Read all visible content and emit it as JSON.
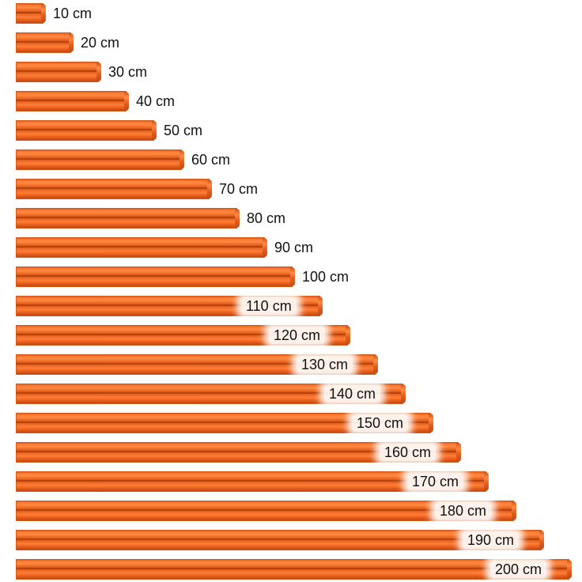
{
  "rods": [
    {
      "length_cm": 10,
      "label": "10 cm"
    },
    {
      "length_cm": 20,
      "label": "20 cm"
    },
    {
      "length_cm": 30,
      "label": "30 cm"
    },
    {
      "length_cm": 40,
      "label": "40 cm"
    },
    {
      "length_cm": 50,
      "label": "50 cm"
    },
    {
      "length_cm": 60,
      "label": "60 cm"
    },
    {
      "length_cm": 70,
      "label": "70 cm"
    },
    {
      "length_cm": 80,
      "label": "80 cm"
    },
    {
      "length_cm": 90,
      "label": "90 cm"
    },
    {
      "length_cm": 100,
      "label": "100 cm"
    },
    {
      "length_cm": 110,
      "label": "110 cm"
    },
    {
      "length_cm": 120,
      "label": "120 cm"
    },
    {
      "length_cm": 130,
      "label": "130 cm"
    },
    {
      "length_cm": 140,
      "label": "140 cm"
    },
    {
      "length_cm": 150,
      "label": "150 cm"
    },
    {
      "length_cm": 160,
      "label": "160 cm"
    },
    {
      "length_cm": 170,
      "label": "170 cm"
    },
    {
      "length_cm": 180,
      "label": "180 cm"
    },
    {
      "length_cm": 190,
      "label": "190 cm"
    },
    {
      "length_cm": 200,
      "label": "200 cm"
    }
  ],
  "colors": {
    "rod": "#f26b22",
    "label_text": "#111111",
    "background": "#ffffff"
  }
}
